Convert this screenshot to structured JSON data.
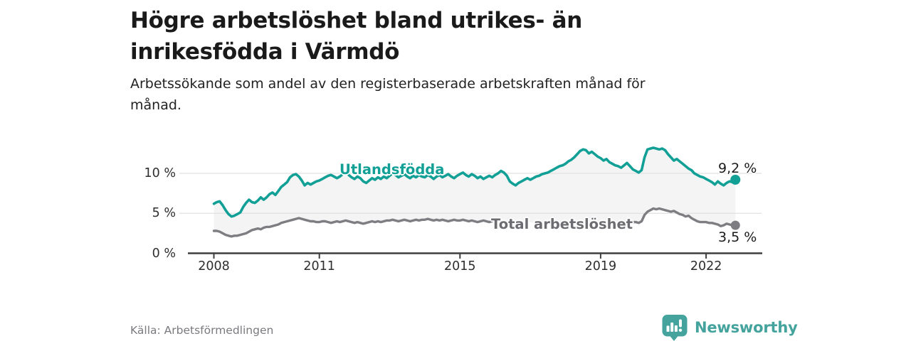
{
  "header": {
    "title_line1": "Högre arbetslöshet bland utrikes- än",
    "title_line2": "inrikesfödda i Värmdö",
    "subtitle_line1": "Arbetssökande som andel av den registerbaserade arbetskraften månad för",
    "subtitle_line2": "månad."
  },
  "footer": {
    "source": "Källa: Arbetsförmedlingen",
    "brand": "Newsworthy",
    "brand_icon": "speech-bubble-bar-chart-icon"
  },
  "colors": {
    "teal_line": "#12a096",
    "gray_line": "#7d7d82",
    "gray_label": "#6c6c71",
    "area_fill": "#f4f4f4",
    "gridline": "#e1e1e1",
    "axis": "#3f3f3f",
    "title_text": "#1a1a1a",
    "source_text": "#7a7a7f",
    "logo_teal": "#44a39d"
  },
  "chart_data": {
    "type": "line",
    "title": "Högre arbetslöshet bland utrikes- än inrikesfödda i Värmdö",
    "subtitle": "Arbetssökande som andel av den registerbaserade arbetskraften månad för månad.",
    "unit": "percent",
    "x_start_year": 2008,
    "x_frequency": "monthly",
    "x_end": "2022-11",
    "grid": "horizontal-only",
    "ylim": [
      0,
      14
    ],
    "x_ticks": [
      {
        "year": 2008,
        "label": "2008"
      },
      {
        "year": 2011,
        "label": "2011"
      },
      {
        "year": 2015,
        "label": "2015"
      },
      {
        "year": 2019,
        "label": "2019"
      },
      {
        "year": 2022,
        "label": "2022"
      }
    ],
    "y_ticks": [
      {
        "value": 0,
        "label": "0 %"
      },
      {
        "value": 5,
        "label": "5 %"
      },
      {
        "value": 10,
        "label": "10 %"
      }
    ],
    "area_between_series": true,
    "series": [
      {
        "name": "Utlandsfödda",
        "end_label": "9,2 %",
        "end_value": 9.2,
        "color": "#12a096",
        "values": [
          6.2,
          6.4,
          6.5,
          6.0,
          5.4,
          4.9,
          4.6,
          4.7,
          4.9,
          5.1,
          5.8,
          6.3,
          6.7,
          6.4,
          6.3,
          6.6,
          7.0,
          6.7,
          7.0,
          7.4,
          7.6,
          7.3,
          7.8,
          8.3,
          8.6,
          8.9,
          9.5,
          9.8,
          9.9,
          9.6,
          9.1,
          8.5,
          8.8,
          8.6,
          8.8,
          9.0,
          9.1,
          9.3,
          9.5,
          9.7,
          9.8,
          9.6,
          9.4,
          9.6,
          9.9,
          10.1,
          9.8,
          9.5,
          9.3,
          9.6,
          9.4,
          9.0,
          8.8,
          9.1,
          9.4,
          9.2,
          9.5,
          9.3,
          9.6,
          9.4,
          9.7,
          10.0,
          9.8,
          9.5,
          9.7,
          9.9,
          9.6,
          9.4,
          9.7,
          9.5,
          9.8,
          9.6,
          9.5,
          9.8,
          9.6,
          9.3,
          9.6,
          9.8,
          9.5,
          9.7,
          9.9,
          9.6,
          9.4,
          9.7,
          9.9,
          10.1,
          9.8,
          9.6,
          9.9,
          9.7,
          9.4,
          9.6,
          9.3,
          9.5,
          9.7,
          9.5,
          9.8,
          10.0,
          10.3,
          10.1,
          9.7,
          9.0,
          8.7,
          8.5,
          8.8,
          9.0,
          9.2,
          9.4,
          9.2,
          9.4,
          9.6,
          9.7,
          9.9,
          10.0,
          10.1,
          10.3,
          10.5,
          10.7,
          10.9,
          11.0,
          11.2,
          11.5,
          11.7,
          12.0,
          12.4,
          12.8,
          13.0,
          12.9,
          12.5,
          12.7,
          12.4,
          12.1,
          11.9,
          11.6,
          11.8,
          11.4,
          11.2,
          11.0,
          10.9,
          10.7,
          11.0,
          11.3,
          10.9,
          10.5,
          10.3,
          10.1,
          10.4,
          12.0,
          13.0,
          13.1,
          13.2,
          13.1,
          13.0,
          13.1,
          12.9,
          12.4,
          12.0,
          11.6,
          11.8,
          11.5,
          11.2,
          10.9,
          10.6,
          10.4,
          10.0,
          9.8,
          9.6,
          9.5,
          9.3,
          9.1,
          8.9,
          8.6,
          9.0,
          8.7,
          8.5,
          8.8,
          9.0,
          8.9,
          9.2
        ]
      },
      {
        "name": "Total arbetslöshet",
        "end_label": "3,5 %",
        "end_value": 3.5,
        "color": "#7d7d82",
        "label_gap_month_indices": [
          96,
          142
        ],
        "values": [
          2.8,
          2.8,
          2.7,
          2.5,
          2.3,
          2.2,
          2.1,
          2.2,
          2.2,
          2.3,
          2.4,
          2.5,
          2.7,
          2.9,
          3.0,
          3.1,
          3.0,
          3.2,
          3.3,
          3.3,
          3.4,
          3.5,
          3.6,
          3.8,
          3.9,
          4.0,
          4.1,
          4.2,
          4.3,
          4.4,
          4.3,
          4.2,
          4.1,
          4.0,
          4.0,
          3.9,
          3.9,
          4.0,
          4.0,
          3.9,
          3.8,
          3.9,
          4.0,
          3.9,
          4.0,
          4.1,
          4.0,
          3.9,
          3.8,
          3.9,
          3.8,
          3.7,
          3.8,
          3.9,
          4.0,
          3.9,
          4.0,
          3.9,
          4.0,
          4.1,
          4.1,
          4.2,
          4.1,
          4.0,
          4.1,
          4.2,
          4.1,
          4.0,
          4.1,
          4.2,
          4.1,
          4.2,
          4.2,
          4.3,
          4.2,
          4.1,
          4.2,
          4.1,
          4.2,
          4.1,
          4.0,
          4.1,
          4.2,
          4.1,
          4.1,
          4.2,
          4.1,
          4.0,
          4.1,
          4.0,
          3.9,
          4.0,
          4.1,
          4.0,
          3.9,
          4.0,
          4.0,
          3.9,
          4.0,
          4.1,
          4.0,
          3.9,
          3.8,
          3.9,
          3.8,
          3.9,
          3.8,
          3.9,
          3.9,
          3.8,
          3.9,
          3.8,
          3.9,
          3.8,
          3.9,
          3.9,
          3.8,
          3.9,
          3.9,
          3.8,
          3.9,
          3.8,
          3.9,
          3.8,
          3.9,
          3.9,
          3.8,
          3.9,
          3.8,
          3.8,
          3.9,
          3.8,
          3.8,
          3.7,
          3.8,
          3.7,
          3.7,
          3.6,
          3.7,
          3.7,
          3.6,
          3.7,
          3.8,
          3.9,
          3.9,
          3.8,
          4.0,
          4.8,
          5.2,
          5.4,
          5.6,
          5.5,
          5.6,
          5.5,
          5.4,
          5.3,
          5.2,
          5.3,
          5.1,
          4.9,
          4.8,
          4.6,
          4.7,
          4.4,
          4.2,
          4.0,
          3.9,
          3.9,
          3.9,
          3.8,
          3.8,
          3.7,
          3.6,
          3.4,
          3.5,
          3.7,
          3.6,
          3.5,
          3.5
        ]
      }
    ]
  }
}
